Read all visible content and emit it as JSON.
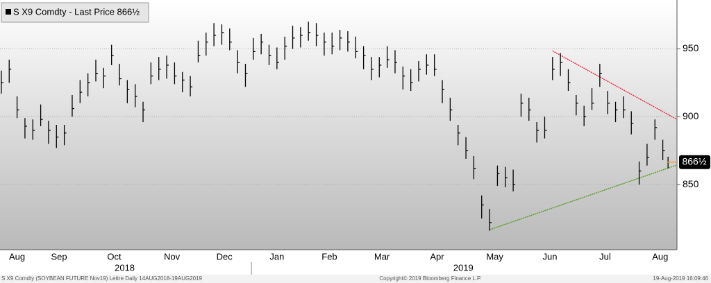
{
  "chart_data": {
    "type": "ohlc",
    "series": [
      {
        "name": "S X9 Comdty - Last Price 866½",
        "color": "#000000",
        "x": [
          0,
          3,
          6,
          9,
          12,
          15,
          18,
          21,
          24,
          27,
          30,
          33,
          36,
          39,
          42,
          45,
          48,
          51,
          54,
          57,
          60,
          63,
          66,
          69,
          72,
          75,
          78,
          81,
          84,
          87,
          90,
          93,
          96,
          99,
          102,
          105,
          108,
          111,
          114,
          117,
          120,
          123,
          126,
          129,
          132,
          135,
          138,
          141,
          144,
          147,
          150,
          153,
          156,
          159,
          162,
          165,
          168,
          171,
          174,
          177,
          180,
          183,
          186,
          189,
          192,
          195,
          198,
          201,
          204,
          207,
          210,
          213,
          216,
          219,
          222,
          225,
          228,
          231,
          234,
          237,
          240,
          243,
          246,
          249,
          252,
          254
        ],
        "high": [
          934,
          942,
          915,
          899,
          898,
          909,
          897,
          894,
          894,
          916,
          927,
          932,
          942,
          936,
          953,
          939,
          927,
          924,
          911,
          940,
          944,
          945,
          940,
          933,
          930,
          956,
          962,
          969,
          968,
          965,
          949,
          939,
          958,
          961,
          953,
          951,
          959,
          967,
          966,
          970,
          969,
          962,
          962,
          964,
          963,
          959,
          952,
          944,
          944,
          952,
          949,
          937,
          935,
          941,
          946,
          946,
          927,
          914,
          894,
          885,
          871,
          842,
          832,
          864,
          863,
          861,
          917,
          914,
          896,
          900,
          944,
          947,
          935,
          916,
          908,
          921,
          939,
          919,
          911,
          915,
          904,
          867,
          880,
          898,
          883,
          870.5
        ],
        "low": [
          917,
          925,
          899,
          884,
          883,
          893,
          880,
          877,
          879,
          900,
          910,
          915,
          926,
          921,
          938,
          923,
          910,
          907,
          896,
          924,
          927,
          928,
          924,
          918,
          915,
          940,
          945,
          952,
          953,
          949,
          932,
          922,
          942,
          946,
          938,
          935,
          942,
          950,
          951,
          956,
          952,
          945,
          946,
          949,
          948,
          943,
          935,
          927,
          929,
          936,
          932,
          920,
          919,
          926,
          931,
          930,
          910,
          897,
          879,
          869,
          854,
          825,
          816,
          849,
          848,
          845,
          900,
          897,
          881,
          884,
          927,
          930,
          919,
          901,
          893,
          905,
          922,
          902,
          896,
          899,
          887,
          850,
          864,
          883,
          868,
          862
        ],
        "close": [
          925,
          935,
          905,
          893,
          890,
          898,
          890,
          885,
          888,
          906,
          918,
          925,
          932,
          930,
          945,
          928,
          920,
          915,
          905,
          930,
          935,
          938,
          930,
          927,
          922,
          945,
          955,
          960,
          962,
          955,
          940,
          932,
          948,
          955,
          945,
          940,
          952,
          958,
          960,
          962,
          960,
          955,
          952,
          958,
          955,
          948,
          945,
          935,
          938,
          942,
          940,
          930,
          925,
          935,
          938,
          935,
          920,
          905,
          888,
          875,
          862,
          835,
          822,
          858,
          855,
          850,
          910,
          905,
          890,
          890,
          935,
          940,
          925,
          910,
          900,
          910,
          932,
          910,
          905,
          905,
          895,
          860,
          870,
          892,
          875,
          866.5
        ]
      }
    ],
    "last_label": {
      "value": 866.5,
      "label": "866½"
    },
    "trend_lines": [
      {
        "color": "#e8334a",
        "x": [
          210,
          257.4
        ],
        "y": [
          948.5,
          898
        ]
      },
      {
        "color": "#5a9e2a",
        "x": [
          186,
          257.4
        ],
        "y": [
          816.7,
          864.4
        ]
      }
    ],
    "xlim": [
      -0.5,
      257.4
    ],
    "ylim": [
      802,
      986
    ],
    "yticks": [
      850,
      900,
      950
    ],
    "xticks": [
      {
        "value": 6,
        "label": "Aug"
      },
      {
        "value": 22,
        "label": "Sep"
      },
      {
        "value": 43,
        "label": "Oct"
      },
      {
        "value": 65,
        "label": "Nov"
      },
      {
        "value": 85,
        "label": "Dec"
      },
      {
        "value": 105,
        "label": "Jan"
      },
      {
        "value": 125,
        "label": "Feb"
      },
      {
        "value": 145,
        "label": "Mar"
      },
      {
        "value": 166,
        "label": "Apr"
      },
      {
        "value": 188,
        "label": "May"
      },
      {
        "value": 209,
        "label": "Jun"
      },
      {
        "value": 230,
        "label": "Jul"
      },
      {
        "value": 251,
        "label": "Aug"
      }
    ],
    "x_year_labels": [
      {
        "value": 47,
        "label": "2018"
      },
      {
        "value": 176,
        "label": "2019"
      }
    ],
    "grid": true,
    "footer": {
      "left": "S X9 Comdty (SOYBEAN FUTURE   Nov19) Lettre  Daily 14AUG2018-19AUG2019",
      "center": "Copyright© 2019 Bloomberg Finance L.P.",
      "right": "19-Aug-2019 16:09:46"
    }
  }
}
